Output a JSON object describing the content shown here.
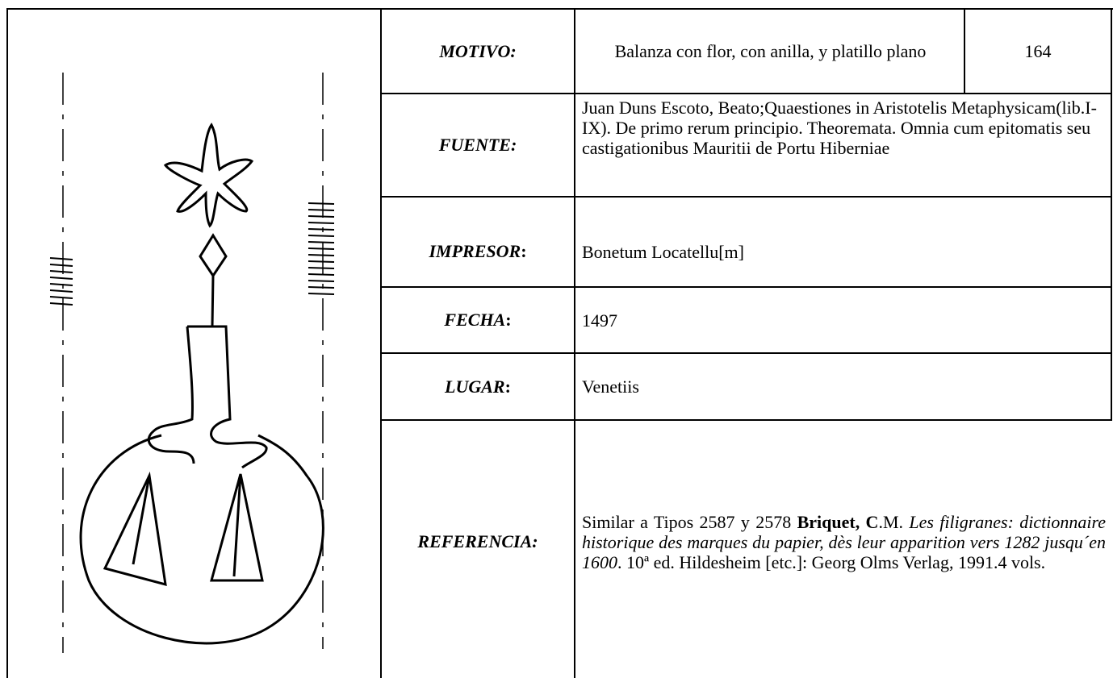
{
  "rows": [
    {
      "label": "MOTIVO:",
      "value": "Balanza con flor, con anilla, y platillo plano",
      "number": "164"
    },
    {
      "label": "FUENTE:",
      "value": "Juan Duns Escoto, Beato;Quaestiones in Aristotelis Metaphysicam(lib.I-IX). De primo rerum principio. Theoremata. Omnia cum epitomatis seu castigationibus Mauritii de Portu Hiberniae"
    },
    {
      "label": "IMPRESOR",
      "suffix": ":",
      "value": "Bonetum Locatellu[m]"
    },
    {
      "label": "FECHA",
      "suffix": ":",
      "value": "1497"
    },
    {
      "label": "LUGAR",
      "suffix": ":",
      "value": "Venetiis"
    },
    {
      "label": "REFERENCIA:",
      "parts": [
        {
          "text": "Similar a Tipos 2587 y 2578 ",
          "style": "normal"
        },
        {
          "text": "Briquet, C",
          "style": "bold"
        },
        {
          "text": ".M. ",
          "style": "normal"
        },
        {
          "text": "Les filigranes: dictionnaire historique des marques du papier, dès leur apparition vers 1282 jusqu´en 1600",
          "style": "italic"
        },
        {
          "text": ". 10ª ed. Hildesheim [etc.]: Georg Olms Verlag, 1991.4 vols.",
          "style": "normal"
        }
      ]
    }
  ]
}
